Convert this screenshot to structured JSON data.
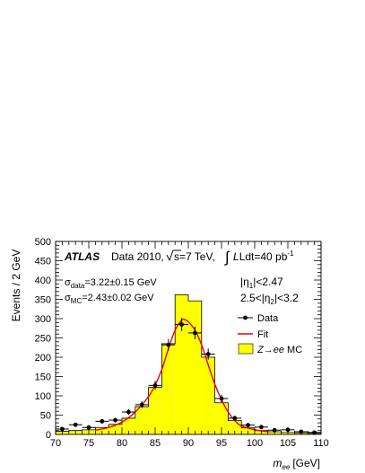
{
  "chart_data": {
    "type": "bar",
    "xlabel_var": "m",
    "xlabel_sub": "ee",
    "xlabel_unit": "[GeV]",
    "ylabel": "Events / 2 GeV",
    "xlim": [
      70,
      110
    ],
    "ylim": [
      0,
      500
    ],
    "xticks": [
      70,
      75,
      80,
      85,
      90,
      95,
      100,
      105,
      110
    ],
    "yticks": [
      0,
      50,
      100,
      150,
      200,
      250,
      300,
      350,
      400,
      450,
      500
    ],
    "header": {
      "atlas": "ATLAS",
      "text": "Data 2010,",
      "sqrt_s": "s=7 TeV,",
      "lumi": "Ldt=40 pb",
      "lumi_exp": "-1"
    },
    "annotations": {
      "sigma_data_sym": "σ",
      "sigma_data_sub": "data",
      "sigma_data_val": "=3.22±0.15 GeV",
      "sigma_mc_sym": "σ",
      "sigma_mc_sub": "MC",
      "sigma_mc_val": "=2.43±0.02 GeV",
      "eta1_pre": "|η",
      "eta1_sub": "1",
      "eta1_post": "|<2.47",
      "eta2_pre": "2.5<|η",
      "eta2_sub": "2",
      "eta2_post": "|<3.2"
    },
    "legend": {
      "data": "Data",
      "fit": "Fit",
      "mc_z": "Z",
      "mc_arrow": "→",
      "mc_ee": "ee",
      "mc_tail": "MC"
    },
    "colors": {
      "mc_fill": "#ffff00",
      "fit_line": "#e8000b",
      "data": "#000000"
    },
    "series": [
      {
        "name": "Z→ee MC",
        "kind": "histogram",
        "bin_edges": [
          70,
          72,
          74,
          76,
          78,
          80,
          82,
          84,
          86,
          88,
          90,
          92,
          94,
          96,
          98,
          100,
          102,
          104,
          106,
          108,
          110
        ],
        "values": [
          8,
          10,
          12,
          18,
          26,
          42,
          72,
          122,
          235,
          362,
          346,
          200,
          82,
          36,
          17,
          10,
          7,
          5,
          4,
          3
        ]
      },
      {
        "name": "Data",
        "kind": "points",
        "x": [
          71,
          73,
          75,
          77,
          79,
          81,
          83,
          85,
          87,
          89,
          91,
          93,
          95,
          97,
          99,
          101,
          103,
          105,
          107,
          109
        ],
        "values": [
          14,
          25,
          18,
          34,
          37,
          58,
          77,
          127,
          232,
          285,
          263,
          208,
          93,
          42,
          24,
          19,
          11,
          12,
          7,
          5
        ]
      },
      {
        "name": "Fit",
        "kind": "curve",
        "x": [
          76,
          78,
          80,
          82,
          84,
          85,
          86,
          87,
          88,
          89,
          89.5,
          90,
          91,
          92,
          93,
          94,
          95,
          96,
          97,
          98,
          100,
          102
        ],
        "values": [
          11,
          18,
          32,
          58,
          98,
          128,
          168,
          222,
          270,
          296,
          297,
          292,
          270,
          232,
          180,
          130,
          90,
          58,
          36,
          22,
          12,
          7
        ]
      }
    ]
  }
}
